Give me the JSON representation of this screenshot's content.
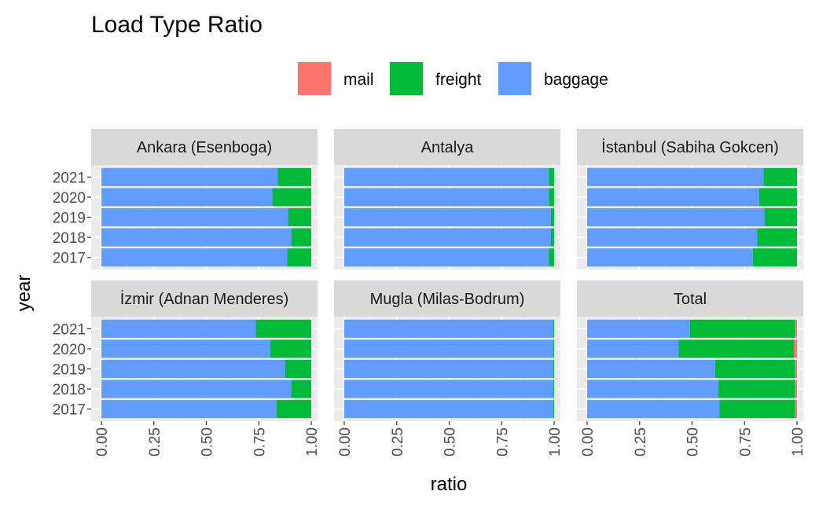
{
  "chart_data": {
    "type": "bar",
    "orientation": "horizontal",
    "stacked": true,
    "title": "Load Type Ratio",
    "xlabel": "ratio",
    "ylabel": "year",
    "xlim": [
      0,
      1
    ],
    "x_ticks": [
      "0.00",
      "0.25",
      "0.50",
      "0.75",
      "1.00"
    ],
    "x_tick_values": [
      0,
      0.25,
      0.5,
      0.75,
      1.0
    ],
    "categories": [
      "2017",
      "2018",
      "2019",
      "2020",
      "2021"
    ],
    "legend": {
      "position": "top",
      "entries": [
        {
          "name": "mail",
          "color": "#F8766D"
        },
        {
          "name": "freight",
          "color": "#00BA38"
        },
        {
          "name": "baggage",
          "color": "#619CFF"
        }
      ]
    },
    "stack_order": [
      "baggage",
      "freight",
      "mail"
    ],
    "panels": [
      {
        "name": "Ankara (Esenboga)",
        "series": [
          {
            "name": "baggage",
            "values": [
              0.885,
              0.905,
              0.89,
              0.815,
              0.84
            ]
          },
          {
            "name": "freight",
            "values": [
              0.115,
              0.095,
              0.11,
              0.185,
              0.16
            ]
          },
          {
            "name": "mail",
            "values": [
              0,
              0,
              0,
              0,
              0
            ]
          }
        ]
      },
      {
        "name": "Antalya",
        "series": [
          {
            "name": "baggage",
            "values": [
              0.975,
              0.985,
              0.985,
              0.975,
              0.975
            ]
          },
          {
            "name": "freight",
            "values": [
              0.025,
              0.015,
              0.015,
              0.025,
              0.025
            ]
          },
          {
            "name": "mail",
            "values": [
              0,
              0,
              0,
              0,
              0
            ]
          }
        ]
      },
      {
        "name": "İstanbul (Sabiha Gokcen)",
        "series": [
          {
            "name": "baggage",
            "values": [
              0.79,
              0.81,
              0.845,
              0.82,
              0.84
            ]
          },
          {
            "name": "freight",
            "values": [
              0.21,
              0.19,
              0.155,
              0.18,
              0.16
            ]
          },
          {
            "name": "mail",
            "values": [
              0,
              0,
              0,
              0,
              0
            ]
          }
        ]
      },
      {
        "name": "İzmir (Adnan Menderes)",
        "series": [
          {
            "name": "baggage",
            "values": [
              0.835,
              0.905,
              0.875,
              0.805,
              0.735
            ]
          },
          {
            "name": "freight",
            "values": [
              0.165,
              0.095,
              0.125,
              0.195,
              0.265
            ]
          },
          {
            "name": "mail",
            "values": [
              0,
              0,
              0,
              0,
              0
            ]
          }
        ]
      },
      {
        "name": "Mugla (Milas-Bodrum)",
        "series": [
          {
            "name": "baggage",
            "values": [
              0.995,
              0.995,
              0.995,
              0.995,
              0.995
            ]
          },
          {
            "name": "freight",
            "values": [
              0.005,
              0.005,
              0.005,
              0.005,
              0.005
            ]
          },
          {
            "name": "mail",
            "values": [
              0,
              0,
              0,
              0,
              0
            ]
          }
        ]
      },
      {
        "name": "Total",
        "series": [
          {
            "name": "baggage",
            "values": [
              0.63,
              0.625,
              0.61,
              0.435,
              0.49
            ]
          },
          {
            "name": "freight",
            "values": [
              0.36,
              0.365,
              0.38,
              0.55,
              0.5
            ]
          },
          {
            "name": "mail",
            "values": [
              0.01,
              0.01,
              0.01,
              0.015,
              0.01
            ]
          }
        ]
      }
    ]
  }
}
